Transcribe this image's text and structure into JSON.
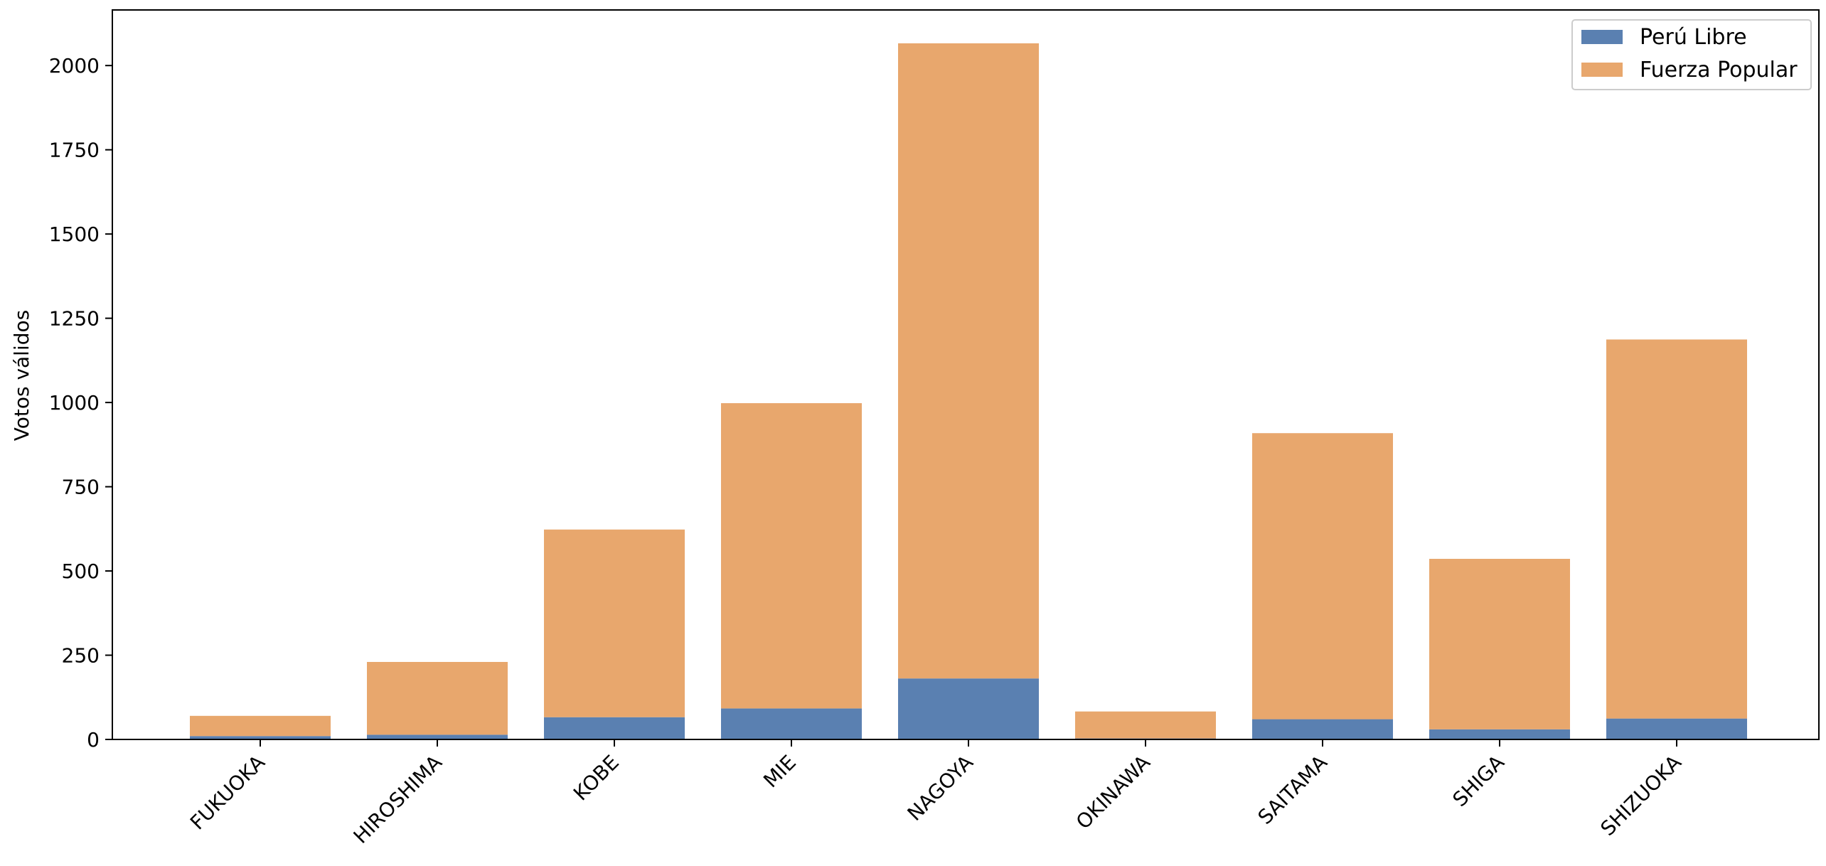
{
  "chart_data": {
    "type": "bar",
    "stacked": true,
    "title": "",
    "xlabel": "",
    "ylabel": "Votos válidos",
    "categories": [
      "FUKUOKA",
      "HIROSHIMA",
      "KOBE",
      "MIE",
      "NAGOYA",
      "OKINAWA",
      "SAITAMA",
      "SHIGA",
      "SHIZUOKA"
    ],
    "series": [
      {
        "name": "Perú Libre",
        "color": "#5a80b1",
        "values": [
          10,
          14,
          66,
          92,
          181,
          3,
          60,
          30,
          62
        ]
      },
      {
        "name": "Fuerza Popular",
        "color": "#e8a76d",
        "values": [
          60,
          216,
          557,
          906,
          1885,
          80,
          849,
          506,
          1125
        ]
      }
    ],
    "ylim": [
      0,
      2165
    ],
    "yticks": [
      0,
      250,
      500,
      750,
      1000,
      1250,
      1500,
      1750,
      2000
    ],
    "legend_position": "top-right",
    "grid": false
  }
}
